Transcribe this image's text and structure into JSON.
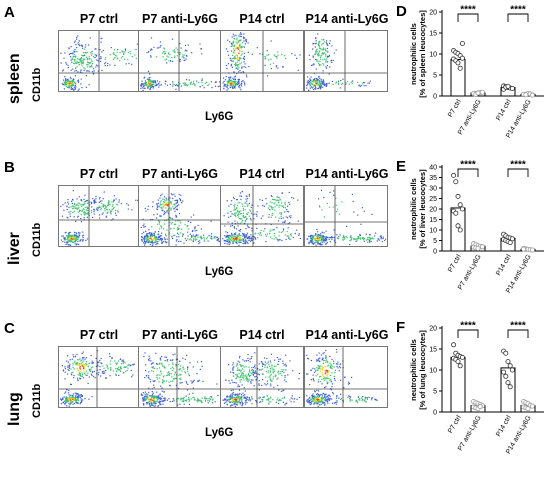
{
  "flow": {
    "columns": [
      "P7 ctrl",
      "P7 anti-Ly6G",
      "P14 ctrl",
      "P14 anti-Ly6G"
    ],
    "y_axis_label": "CD11b",
    "x_axis_label": "Ly6G",
    "rows": [
      {
        "letter": "A",
        "tissue": "spleen"
      },
      {
        "letter": "B",
        "tissue": "liver"
      },
      {
        "letter": "C",
        "tissue": "lung"
      }
    ]
  },
  "colors": {
    "density_low": "#3a5bd9",
    "density_mid": "#39c26b",
    "density_high": "#f2d21b",
    "density_peak": "#e8412a",
    "bar_ctrl": "#ffffff",
    "point_ctrl": "#333333",
    "point_anti": "#999999"
  },
  "chart_data": [
    {
      "letter": "D",
      "type": "bar",
      "ylabel": "neutrophilic cells\n[% of spleen leucocytes]",
      "ylim": [
        0,
        20
      ],
      "yticks": [
        0,
        5,
        10,
        15,
        20
      ],
      "categories": [
        "P7 ctrl",
        "P7 anti-Ly6G",
        "P14 ctrl",
        "P14 anti-Ly6G"
      ],
      "values": [
        8.7,
        0.7,
        2.0,
        0.4
      ],
      "points": [
        [
          10.8,
          10.4,
          10.1,
          9.6,
          9.0,
          8.8,
          8.4,
          7.9,
          6.6,
          12.5
        ],
        [
          0.5,
          0.6,
          0.7,
          0.8,
          0.9,
          0.6,
          0.4,
          0.7
        ],
        [
          2.4,
          2.2,
          2.0,
          1.9,
          1.8,
          1.6,
          2.1,
          2.3
        ],
        [
          0.3,
          0.4,
          0.6,
          0.5,
          0.2,
          0.4,
          0.3
        ]
      ],
      "significance": [
        "****",
        "****"
      ]
    },
    {
      "letter": "E",
      "type": "bar",
      "ylabel": "neutrophilic cells\n[% of liver leucocytes]",
      "ylim": [
        0,
        40
      ],
      "yticks": [
        0,
        5,
        10,
        15,
        20,
        25,
        30,
        35,
        40
      ],
      "categories": [
        "P7 ctrl",
        "P7 anti-Ly6G",
        "P14 ctrl",
        "P14 anti-Ly6G"
      ],
      "values": [
        20.5,
        2.3,
        6.0,
        0.8
      ],
      "points": [
        [
          36.0,
          33.0,
          26.0,
          22.0,
          20.0,
          19.0,
          18.0,
          12.0,
          10.0
        ],
        [
          3.5,
          3.0,
          2.5,
          2.2,
          2.0,
          1.8,
          1.5,
          1.2
        ],
        [
          8.0,
          7.2,
          6.5,
          6.2,
          5.8,
          5.5,
          5.0,
          4.5,
          4.0
        ],
        [
          1.2,
          1.0,
          0.8,
          0.6,
          0.5,
          0.9
        ]
      ],
      "significance": [
        "****",
        "****"
      ]
    },
    {
      "letter": "F",
      "type": "bar",
      "ylabel": "neutrophilic cells\n[% of lung leucocytes]",
      "ylim": [
        0,
        20
      ],
      "yticks": [
        0,
        5,
        10,
        15,
        20
      ],
      "categories": [
        "P7 ctrl",
        "P7 anti-Ly6G",
        "P14 ctrl",
        "P14 anti-Ly6G"
      ],
      "values": [
        13.0,
        1.5,
        10.5,
        1.5
      ],
      "points": [
        [
          16.0,
          14.0,
          13.5,
          13.2,
          13.0,
          12.8,
          12.5,
          12.0,
          11.0
        ],
        [
          2.5,
          2.2,
          2.0,
          1.8,
          1.5,
          1.2,
          1.0,
          0.8,
          1.3
        ],
        [
          14.5,
          14.0,
          12.0,
          11.0,
          10.0,
          9.5,
          8.5,
          7.0,
          6.0
        ],
        [
          2.5,
          2.2,
          2.0,
          1.6,
          1.4,
          1.2,
          1.0,
          0.8
        ]
      ],
      "significance": [
        "****",
        "****"
      ]
    }
  ]
}
